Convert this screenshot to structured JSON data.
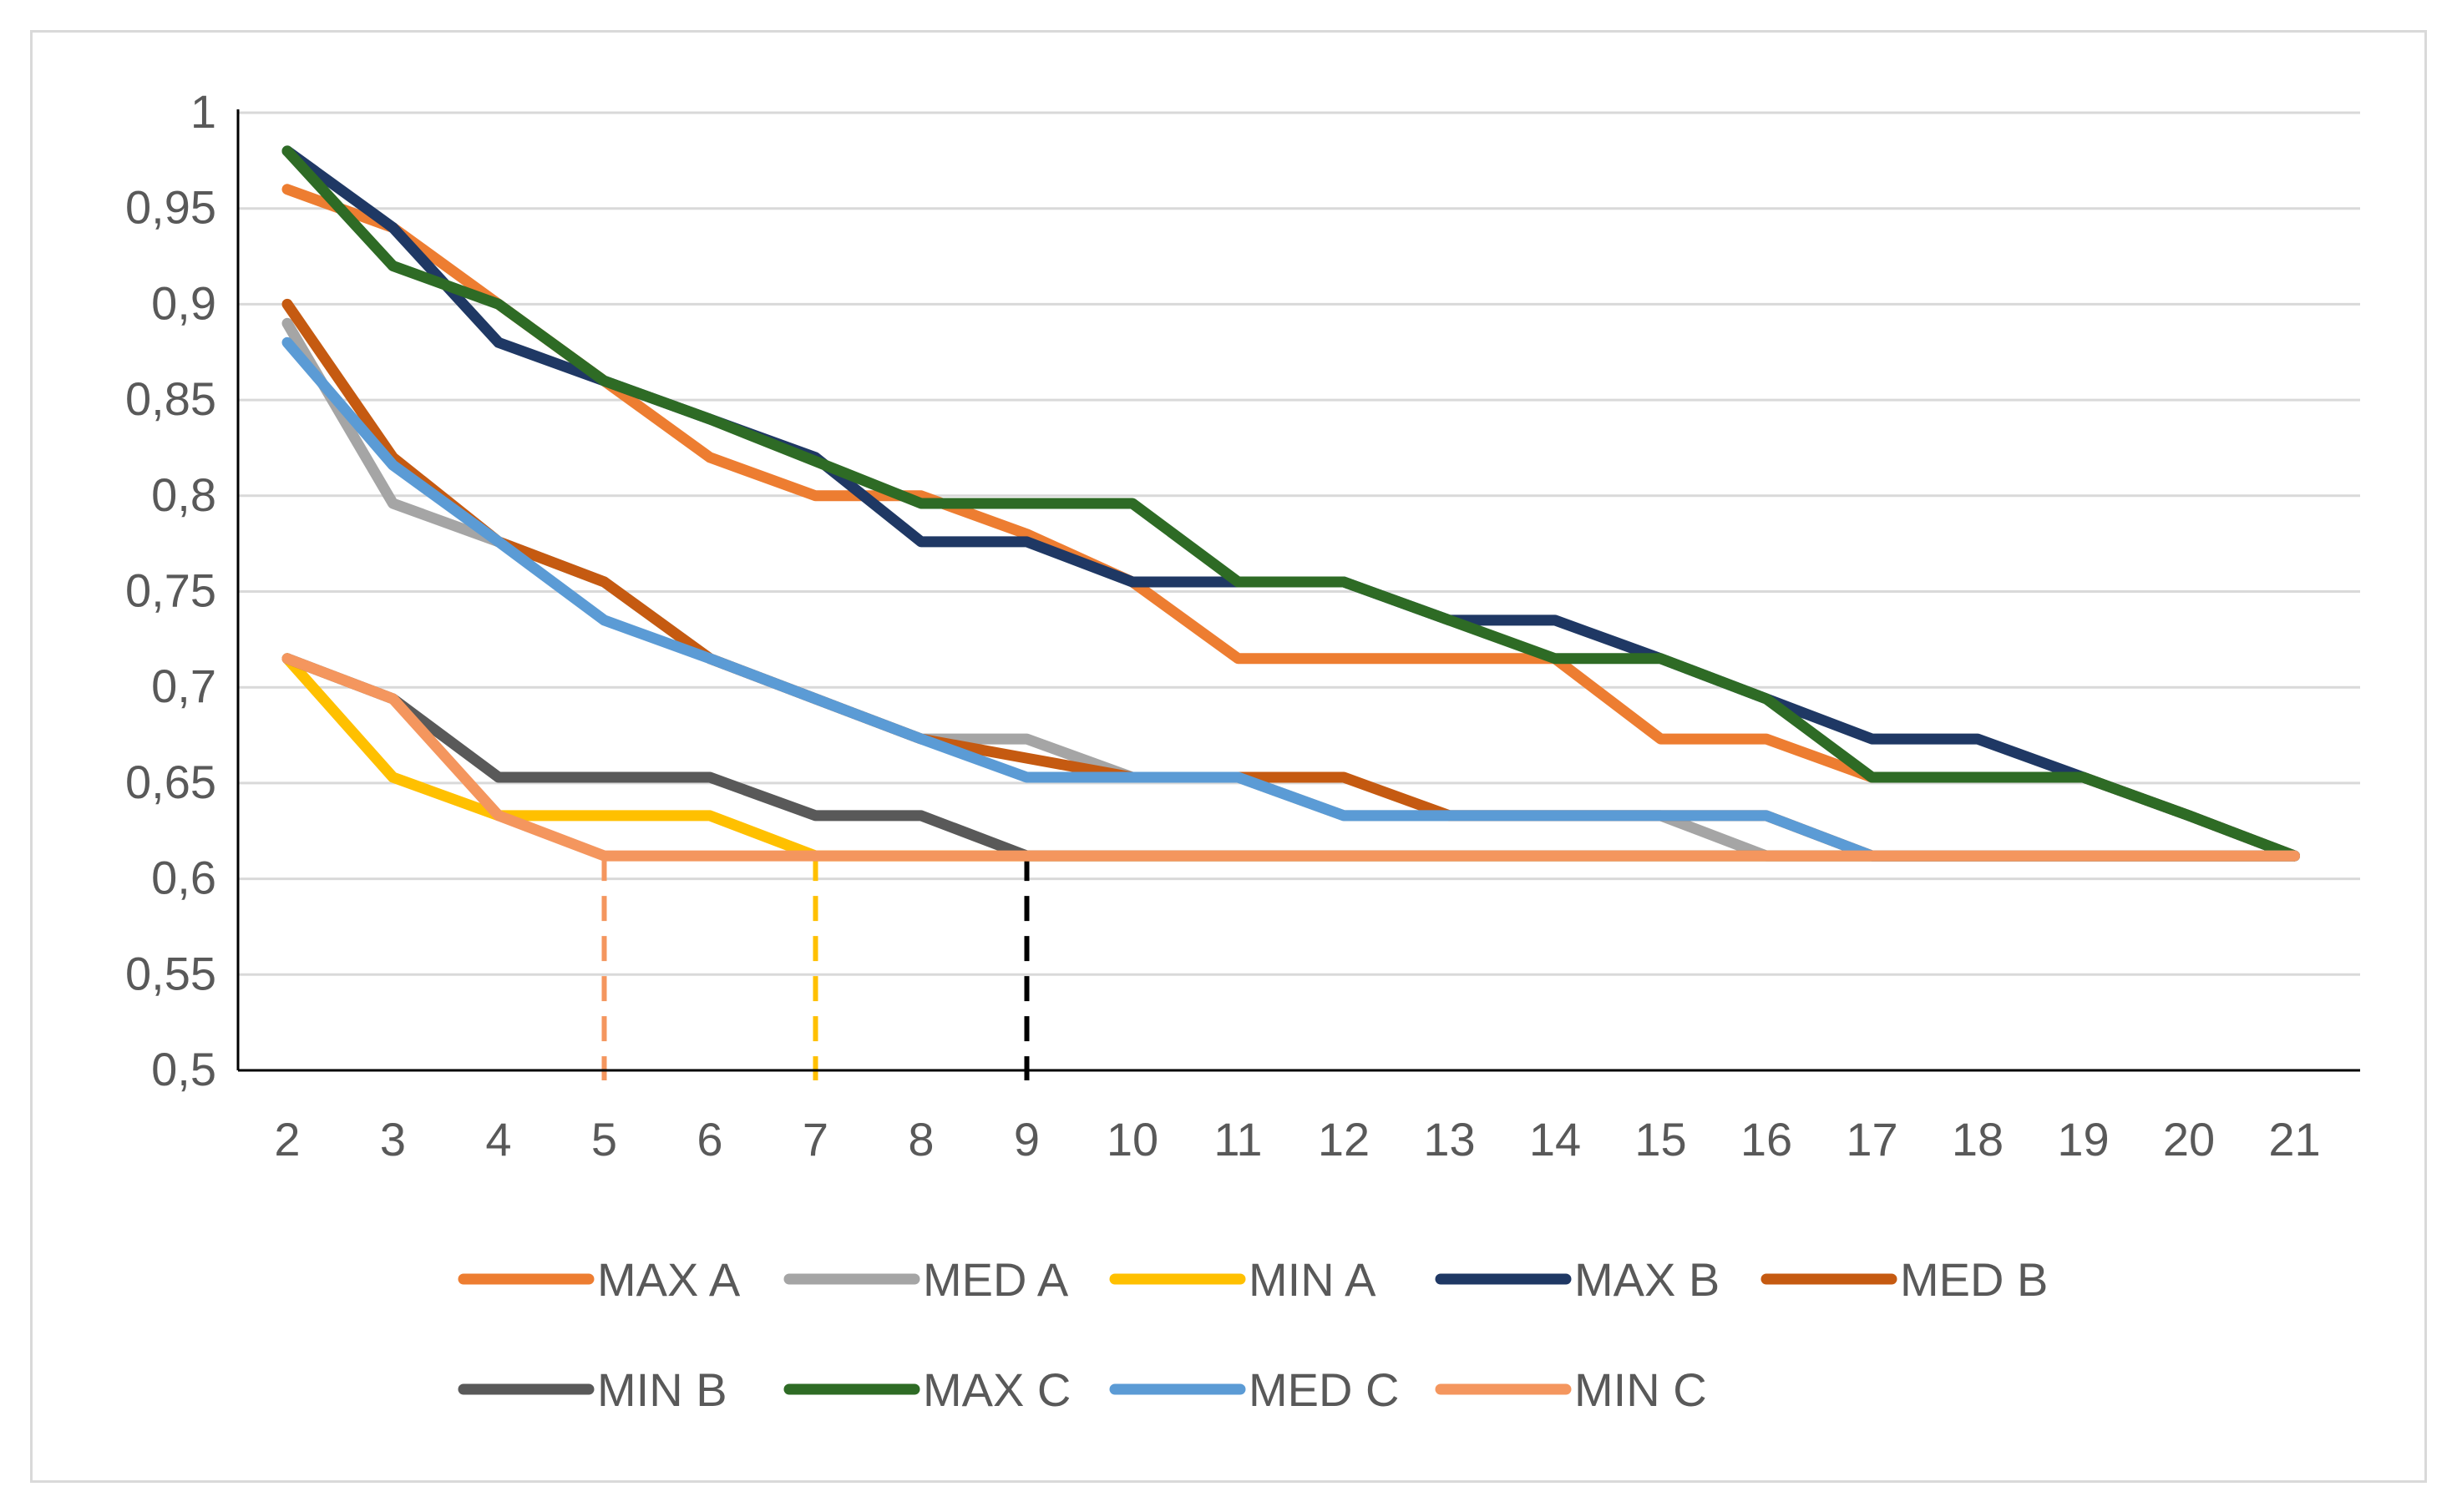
{
  "chart_data": {
    "type": "line",
    "title": "",
    "xlabel": "",
    "ylabel": "",
    "x": [
      2,
      3,
      4,
      5,
      6,
      7,
      8,
      9,
      10,
      11,
      12,
      13,
      14,
      15,
      16,
      17,
      18,
      19,
      20,
      21
    ],
    "x_tick_labels": [
      "2",
      "3",
      "4",
      "5",
      "6",
      "7",
      "8",
      "9",
      "10",
      "11",
      "12",
      "13",
      "14",
      "15",
      "16",
      "17",
      "18",
      "19",
      "20",
      "21"
    ],
    "ylim": [
      0.5,
      1.0
    ],
    "y_ticks": [
      0.5,
      0.55,
      0.6,
      0.65,
      0.7,
      0.75,
      0.8,
      0.85,
      0.9,
      0.95,
      1.0
    ],
    "y_tick_labels": [
      "0,5",
      "0,55",
      "0,6",
      "0,65",
      "0,7",
      "0,75",
      "0,8",
      "0,85",
      "0,9",
      "0,95",
      "1"
    ],
    "grid": true,
    "legend_position": "bottom",
    "series": [
      {
        "name": "MAX A",
        "color": "#ED7D31",
        "values": [
          0.96,
          0.94,
          0.9,
          0.86,
          0.82,
          0.8,
          0.8,
          0.78,
          0.755,
          0.715,
          0.715,
          0.715,
          0.715,
          0.673,
          0.673,
          0.653,
          0.653,
          0.653,
          0.633,
          0.612
        ]
      },
      {
        "name": "MED A",
        "color": "#A5A5A5",
        "values": [
          0.89,
          0.796,
          0.776,
          0.755,
          0.715,
          0.694,
          0.673,
          0.673,
          0.653,
          0.653,
          0.633,
          0.633,
          0.633,
          0.633,
          0.612,
          0.612,
          0.612,
          0.612,
          0.612,
          0.612
        ]
      },
      {
        "name": "MIN A",
        "color": "#FFC000",
        "values": [
          0.715,
          0.653,
          0.633,
          0.633,
          0.633,
          0.612,
          0.612,
          0.612,
          0.612,
          0.612,
          0.612,
          0.612,
          0.612,
          0.612,
          0.612,
          0.612,
          0.612,
          0.612,
          0.612,
          0.612
        ]
      },
      {
        "name": "MAX B",
        "color": "#1F3864",
        "values": [
          0.98,
          0.94,
          0.88,
          0.86,
          0.84,
          0.82,
          0.776,
          0.776,
          0.755,
          0.755,
          0.755,
          0.735,
          0.735,
          0.715,
          0.694,
          0.673,
          0.673,
          0.653,
          0.633,
          0.612
        ]
      },
      {
        "name": "MED B",
        "color": "#C55A11",
        "values": [
          0.9,
          0.82,
          0.776,
          0.755,
          0.715,
          0.694,
          0.673,
          0.663,
          0.653,
          0.653,
          0.653,
          0.633,
          0.633,
          0.633,
          0.633,
          0.612,
          0.612,
          0.612,
          0.612,
          0.612
        ]
      },
      {
        "name": "MIN B",
        "color": "#595959",
        "values": [
          0.715,
          0.694,
          0.653,
          0.653,
          0.653,
          0.633,
          0.633,
          0.612,
          0.612,
          0.612,
          0.612,
          0.612,
          0.612,
          0.612,
          0.612,
          0.612,
          0.612,
          0.612,
          0.612,
          0.612
        ]
      },
      {
        "name": "MAX C",
        "color": "#2E6B25",
        "values": [
          0.98,
          0.92,
          0.9,
          0.86,
          0.84,
          0.818,
          0.796,
          0.796,
          0.796,
          0.755,
          0.755,
          0.735,
          0.715,
          0.715,
          0.694,
          0.653,
          0.653,
          0.653,
          0.633,
          0.612
        ]
      },
      {
        "name": "MED C",
        "color": "#5B9BD5",
        "values": [
          0.88,
          0.816,
          0.776,
          0.735,
          0.715,
          0.694,
          0.673,
          0.653,
          0.653,
          0.653,
          0.633,
          0.633,
          0.633,
          0.633,
          0.633,
          0.612,
          0.612,
          0.612,
          0.612,
          0.612
        ]
      },
      {
        "name": "MIN C",
        "color": "#F4965E",
        "values": [
          0.715,
          0.694,
          0.633,
          0.612,
          0.612,
          0.612,
          0.612,
          0.612,
          0.612,
          0.612,
          0.612,
          0.612,
          0.612,
          0.612,
          0.612,
          0.612,
          0.612,
          0.612,
          0.612,
          0.612
        ]
      }
    ],
    "annotations": [
      {
        "type": "vertical-dashed-line",
        "x": 5,
        "y_from": 0.612,
        "y_to": 0.5,
        "color": "#F4965E"
      },
      {
        "type": "vertical-dashed-line",
        "x": 7,
        "y_from": 0.612,
        "y_to": 0.5,
        "color": "#FFC000"
      },
      {
        "type": "vertical-dashed-line",
        "x": 9,
        "y_from": 0.612,
        "y_to": 0.5,
        "color": "#000000"
      }
    ],
    "colors": {
      "gridline": "#d9d9d9",
      "axis": "#000000",
      "tick_text": "#595959"
    }
  }
}
